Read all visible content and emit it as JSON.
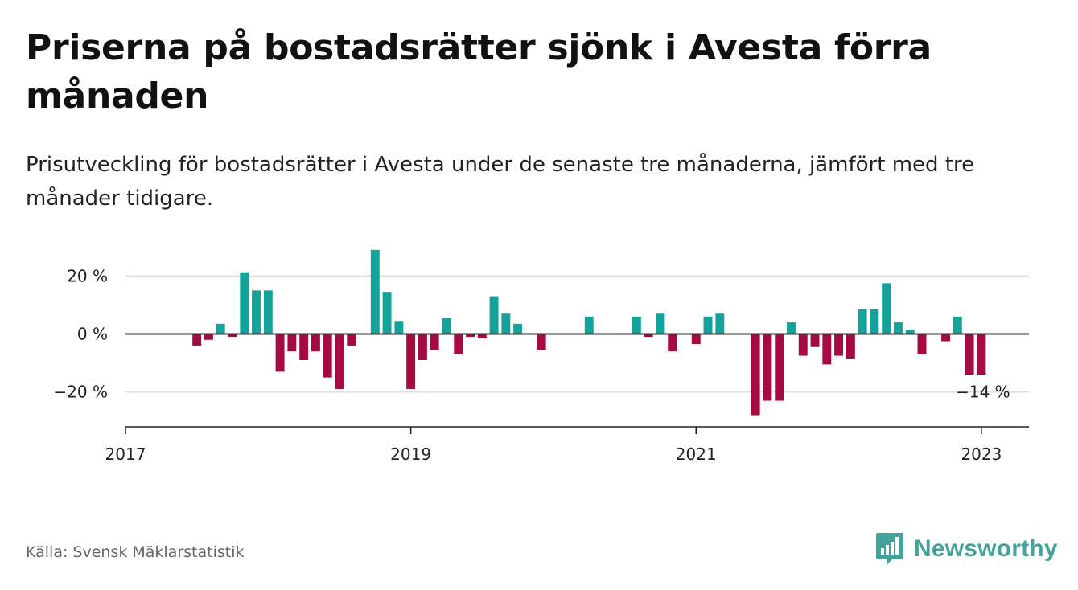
{
  "title": "Priserna på bostadsrätter sjönk i Avesta förra månaden",
  "subtitle": "Prisutveckling för bostadsrätter i Avesta under de senaste tre månaderna, jämfört med tre månader tidigare.",
  "source": "Källa: Svensk Mäklarstatistik",
  "brand": {
    "name": "Newsworthy",
    "icon": "newsworthy-logo-icon",
    "color": "#44a39b"
  },
  "colors": {
    "positive": "#14a39b",
    "negative": "#a50b42",
    "grid": "#dddddd",
    "zero_line": "#333333"
  },
  "chart_data": {
    "type": "bar",
    "title": "Priserna på bostadsrätter sjönk i Avesta förra månaden",
    "ylabel": "",
    "xlabel": "",
    "y_unit": "%",
    "ylim": [
      -32,
      32
    ],
    "yticks": [
      -20,
      0,
      20
    ],
    "ytick_labels": [
      "−20 %",
      "0 %",
      "20 %"
    ],
    "xlim": [
      "2017-01",
      "2023-05"
    ],
    "xticks": [
      "2017-01",
      "2019-01",
      "2021-01",
      "2023-01"
    ],
    "xtick_labels": [
      "2017",
      "2019",
      "2021",
      "2023"
    ],
    "grid": true,
    "annotation": {
      "x": "2023-01",
      "text": "−14 %"
    },
    "x": [
      "2017-07",
      "2017-08",
      "2017-09",
      "2017-10",
      "2017-11",
      "2017-12",
      "2018-01",
      "2018-02",
      "2018-03",
      "2018-04",
      "2018-05",
      "2018-06",
      "2018-07",
      "2018-08",
      "2018-09",
      "2018-10",
      "2018-11",
      "2018-12",
      "2019-01",
      "2019-02",
      "2019-03",
      "2019-04",
      "2019-05",
      "2019-06",
      "2019-07",
      "2019-08",
      "2019-09",
      "2019-10",
      "2019-11",
      "2019-12",
      "2020-01",
      "2020-02",
      "2020-03",
      "2020-04",
      "2020-05",
      "2020-06",
      "2020-07",
      "2020-08",
      "2020-09",
      "2020-10",
      "2020-11",
      "2020-12",
      "2021-01",
      "2021-02",
      "2021-03",
      "2021-04",
      "2021-05",
      "2021-06",
      "2021-07",
      "2021-08",
      "2021-09",
      "2021-10",
      "2021-11",
      "2021-12",
      "2022-01",
      "2022-02",
      "2022-03",
      "2022-04",
      "2022-05",
      "2022-06",
      "2022-07",
      "2022-08",
      "2022-09",
      "2022-10",
      "2022-11",
      "2022-12",
      "2023-01"
    ],
    "values": [
      -4,
      -2,
      3.5,
      -1,
      21,
      15,
      15,
      -13,
      -6,
      -9,
      -6,
      -15,
      -19,
      -4,
      0,
      29,
      14.5,
      4.5,
      -19,
      -9,
      -5.5,
      5.5,
      -7,
      -1,
      -1.5,
      13,
      7,
      3.5,
      0.3,
      -5.5,
      0,
      0,
      0,
      6,
      0,
      0,
      0.3,
      6,
      -1,
      7,
      -6,
      0,
      -3.5,
      6,
      7,
      0,
      0,
      -28,
      -23,
      -23,
      4,
      -7.5,
      -4.5,
      -10.5,
      -7.5,
      -8.5,
      8.5,
      8.5,
      17.5,
      4,
      1.5,
      -7,
      0,
      -2.5,
      6,
      -14,
      -14
    ]
  }
}
